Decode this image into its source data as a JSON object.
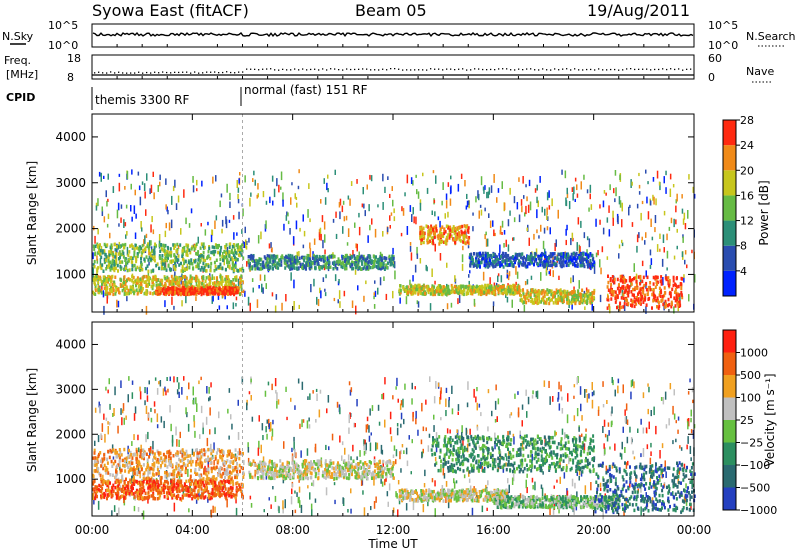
{
  "header": {
    "title": "Syowa East (fitACF)",
    "beam": "Beam 05",
    "date": "19/Aug/2011"
  },
  "noise_panel": {
    "left_label": "N.Sky",
    "right_label": "N.Search",
    "left_ticks": [
      "10^5",
      "10^0"
    ],
    "right_ticks": [
      "10^5",
      "10^0"
    ]
  },
  "freq_panel": {
    "left_label_1": "Freq.",
    "left_label_2": "[MHz]",
    "right_label": "Nave",
    "left_ticks": [
      "18",
      "8"
    ],
    "right_ticks": [
      "60",
      "0"
    ]
  },
  "cpid_panel": {
    "label": "CPID",
    "segments": [
      {
        "start_ut": 0,
        "end_ut": 6,
        "name": "themis 3300 RF"
      },
      {
        "start_ut": 6,
        "end_ut": 24,
        "name": "normal (fast) 151 RF"
      }
    ]
  },
  "chart_data": [
    {
      "type": "heatmap",
      "name": "power",
      "ylabel": "Slant Range [km]",
      "ylim": [
        180,
        4500
      ],
      "yticks": [
        "1000",
        "2000",
        "3000",
        "4000"
      ],
      "colorbar": {
        "label": "Power [dB]",
        "ticks": [
          "4",
          "8",
          "12",
          "16",
          "20",
          "24",
          "28"
        ],
        "colors": [
          "#0022ff",
          "#2a4db0",
          "#2c8f78",
          "#66bb44",
          "#c7c61d",
          "#f08a18",
          "#ff2a10"
        ]
      },
      "regions": [
        {
          "t0": 0,
          "t1": 6,
          "r0": 1100,
          "r1": 1700,
          "level": 3
        },
        {
          "t0": 0,
          "t1": 6,
          "r0": 600,
          "r1": 1000,
          "level": 4
        },
        {
          "t0": 2.5,
          "t1": 5.8,
          "r0": 600,
          "r1": 750,
          "level": 6
        },
        {
          "t0": 6.2,
          "t1": 12,
          "r0": 1150,
          "r1": 1450,
          "level": 2
        },
        {
          "t0": 12.2,
          "t1": 17,
          "r0": 600,
          "r1": 800,
          "level": 4
        },
        {
          "t0": 13,
          "t1": 15,
          "r0": 1700,
          "r1": 2100,
          "level": 5
        },
        {
          "t0": 15,
          "t1": 20,
          "r0": 1200,
          "r1": 1500,
          "level": 1
        },
        {
          "t0": 17,
          "t1": 20,
          "r0": 400,
          "r1": 700,
          "level": 4
        },
        {
          "t0": 20.5,
          "t1": 23.5,
          "r0": 300,
          "r1": 1000,
          "level": 6
        }
      ]
    },
    {
      "type": "heatmap",
      "name": "velocity",
      "ylabel": "Slant Range [km]",
      "xlabel": "Time UT",
      "xlim": [
        0,
        24
      ],
      "xticks": [
        "00:00",
        "04:00",
        "08:00",
        "12:00",
        "16:00",
        "20:00",
        "00:00"
      ],
      "ylim": [
        180,
        4500
      ],
      "yticks": [
        "1000",
        "2000",
        "3000",
        "4000"
      ],
      "colorbar": {
        "label": "Velocity [m s⁻¹]",
        "ticks": [
          "1000",
          "500",
          "100",
          "25",
          "−25",
          "−100",
          "−500",
          "−1000"
        ],
        "colors": [
          "#2440c0",
          "#2a6a70",
          "#2c8f60",
          "#66c040",
          "#c0c0c0",
          "#f0a020",
          "#f06010",
          "#ff2010"
        ]
      },
      "regions": [
        {
          "t0": 0,
          "t1": 6,
          "r0": 1000,
          "r1": 1700,
          "level": 5
        },
        {
          "t0": 0,
          "t1": 6,
          "r0": 600,
          "r1": 1000,
          "level": 6
        },
        {
          "t0": 6.2,
          "t1": 12,
          "r0": 1050,
          "r1": 1450,
          "level": 4
        },
        {
          "t0": 12.2,
          "t1": 16.5,
          "r0": 550,
          "r1": 800,
          "level": 4
        },
        {
          "t0": 13.5,
          "t1": 20,
          "r0": 1200,
          "r1": 2000,
          "level": 2
        },
        {
          "t0": 16,
          "t1": 21,
          "r0": 400,
          "r1": 650,
          "level": 3
        },
        {
          "t0": 20,
          "t1": 24,
          "r0": 300,
          "r1": 1400,
          "level": 1
        }
      ]
    }
  ]
}
